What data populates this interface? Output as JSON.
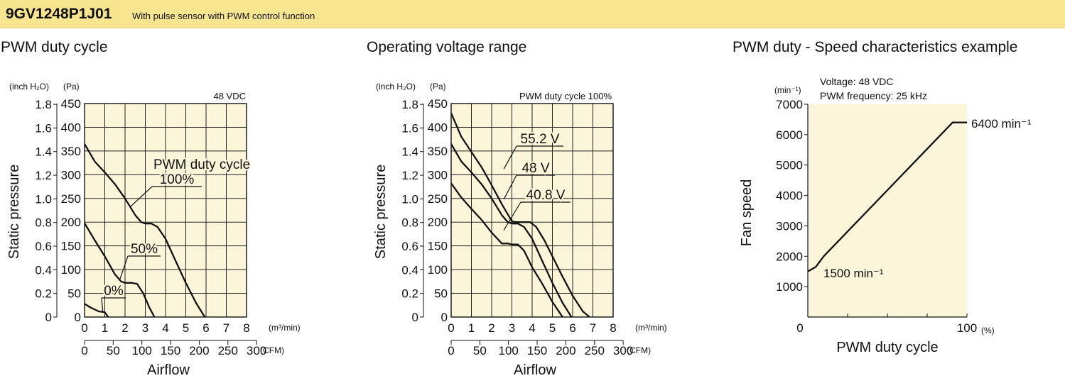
{
  "header": {
    "model": "9GV1248P1J01",
    "description": "With pulse sensor with PWM control function",
    "bg_color": "#f8e58f"
  },
  "chart_data": [
    {
      "type": "line",
      "title": "PWM duty cycle",
      "condition": "48 VDC",
      "xlabel": "Airflow",
      "ylabel": "Static pressure",
      "x_unit": "(m³/min)",
      "x2_unit": "(CFM)",
      "y_unit_left": "(inch H₂O)",
      "y_unit_right": "(Pa)",
      "xlim": [
        0,
        8
      ],
      "ylim": [
        0,
        450
      ],
      "x_ticks": [
        "0",
        "1",
        "2",
        "3",
        "4",
        "5",
        "6",
        "7",
        "8"
      ],
      "x2_ticks": [
        "0",
        "50",
        "100",
        "150",
        "200",
        "250",
        "300"
      ],
      "y_ticks": [
        "0",
        "50",
        "100",
        "150",
        "200",
        "250",
        "300",
        "350",
        "400",
        "450"
      ],
      "y2_ticks": [
        "0",
        "0.2",
        "0.4",
        "0.6",
        "0.8",
        "1.0",
        "1.2",
        "1.4",
        "1.6",
        "1.8"
      ],
      "annotation": "PWM duty cycle",
      "plot_bg": "#fbf6d9",
      "series": [
        {
          "name": "100%",
          "x": [
            0,
            0.5,
            1,
            1.5,
            2,
            2.5,
            2.8,
            3,
            3.3,
            3.6,
            4,
            4.5,
            5,
            5.5,
            6,
            6.3
          ],
          "y": [
            365,
            328,
            305,
            280,
            250,
            215,
            200,
            197,
            197,
            190,
            165,
            118,
            72,
            30,
            -4,
            -20
          ]
        },
        {
          "name": "50%",
          "x": [
            0,
            0.5,
            1,
            1.5,
            1.8,
            2,
            2.3,
            2.6,
            2.9,
            3.2,
            3.5,
            3.8,
            4
          ],
          "y": [
            198,
            162,
            128,
            90,
            75,
            72,
            72,
            70,
            50,
            20,
            -4,
            -10,
            -10
          ]
        },
        {
          "name": "0%",
          "x": [
            0,
            0.3,
            0.7,
            1,
            1.2,
            1.4
          ],
          "y": [
            28,
            20,
            12,
            10,
            -2,
            -2
          ]
        }
      ]
    },
    {
      "type": "line",
      "title": "Operating voltage range",
      "condition": "PWM duty cycle 100%",
      "xlabel": "Airflow",
      "ylabel": "Static pressure",
      "x_unit": "(m³/min)",
      "x2_unit": "(CFM)",
      "y_unit_left": "(inch H₂O)",
      "y_unit_right": "(Pa)",
      "xlim": [
        0,
        8
      ],
      "ylim": [
        0,
        450
      ],
      "x_ticks": [
        "0",
        "1",
        "2",
        "3",
        "4",
        "5",
        "6",
        "7",
        "8"
      ],
      "x2_ticks": [
        "0",
        "50",
        "100",
        "150",
        "200",
        "250",
        "300"
      ],
      "y_ticks": [
        "0",
        "50",
        "100",
        "150",
        "200",
        "250",
        "300",
        "350",
        "400",
        "450"
      ],
      "y2_ticks": [
        "0",
        "0.2",
        "0.4",
        "0.6",
        "0.8",
        "1.0",
        "1.2",
        "1.4",
        "1.6",
        "1.8"
      ],
      "plot_bg": "#fbf6d9",
      "series": [
        {
          "name": "55.2 V",
          "x": [
            0,
            0.5,
            1,
            1.5,
            2,
            2.5,
            3,
            3.2,
            3.5,
            3.9,
            4.2,
            4.6,
            5,
            5.5,
            6,
            6.5,
            6.95
          ],
          "y": [
            430,
            380,
            348,
            316,
            278,
            238,
            202,
            200,
            200,
            200,
            190,
            162,
            128,
            85,
            45,
            12,
            -4
          ]
        },
        {
          "name": "48 V",
          "x": [
            0,
            0.5,
            1,
            1.5,
            2,
            2.5,
            2.8,
            3,
            3.3,
            3.6,
            4,
            4.5,
            5,
            5.5,
            6,
            6.3
          ],
          "y": [
            365,
            328,
            305,
            280,
            250,
            215,
            200,
            197,
            197,
            190,
            165,
            118,
            72,
            30,
            -4,
            -20
          ]
        },
        {
          "name": "40.8 V",
          "x": [
            0,
            0.5,
            1,
            1.5,
            2,
            2.5,
            2.8,
            3,
            3.3,
            3.6,
            4,
            4.5,
            5,
            5.5,
            5.75
          ],
          "y": [
            282,
            252,
            228,
            205,
            178,
            155,
            155,
            153,
            153,
            140,
            105,
            70,
            32,
            0,
            -8
          ]
        }
      ]
    },
    {
      "type": "line",
      "title": "PWM duty - Speed characteristics example",
      "condition_lines": [
        "Voltage: 48 VDC",
        "PWM frequency: 25 kHz"
      ],
      "xlabel": "PWM duty cycle",
      "ylabel": "Fan speed",
      "y_unit": "(min⁻¹)",
      "x_unit": "(%)",
      "xlim": [
        0,
        100
      ],
      "ylim": [
        0,
        7000
      ],
      "x_ticks": [
        "0",
        "100"
      ],
      "y_ticks": [
        "1000",
        "2000",
        "3000",
        "4000",
        "5000",
        "6000",
        "7000"
      ],
      "plot_bg": "#fbf6d9",
      "annotations": [
        "6400 min⁻¹",
        "1500 min⁻¹"
      ],
      "series": [
        {
          "x": [
            0,
            5,
            10,
            91,
            100
          ],
          "y": [
            1500,
            1650,
            2000,
            6400,
            6400
          ]
        }
      ]
    }
  ]
}
